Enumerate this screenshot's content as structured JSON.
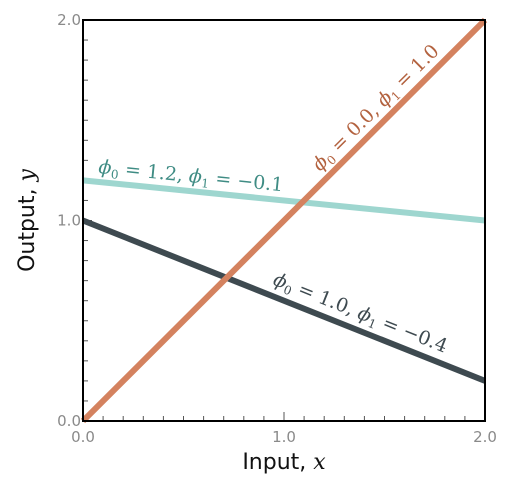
{
  "chart_data": {
    "type": "line",
    "xlabel": "Input, x",
    "ylabel": "Output, y",
    "xlabel_text": "Input, ",
    "xlabel_var": "x",
    "ylabel_text": "Output, ",
    "ylabel_var": "y",
    "xlim": [
      0,
      2
    ],
    "ylim": [
      0,
      2
    ],
    "xticks": [
      0.0,
      1.0,
      2.0
    ],
    "yticks": [
      0.0,
      1.0,
      2.0
    ],
    "xtick_labels": [
      "0.0",
      "1.0",
      "2.0"
    ],
    "ytick_labels": [
      "0.0",
      "1.0",
      "2.0"
    ],
    "grid": false,
    "legend": "none",
    "series": [
      {
        "name": "ϕ0 = 1.2, ϕ1 = −0.1",
        "phi0": "1.2",
        "phi1": "−0.1",
        "x": [
          0,
          2
        ],
        "y": [
          1.2,
          1.0
        ],
        "color": "#9ed6cf"
      },
      {
        "name": "ϕ0 = 1.0, ϕ1 = −0.4",
        "phi0": "1.0",
        "phi1": "−0.4",
        "x": [
          0,
          2
        ],
        "y": [
          1.0,
          0.2
        ],
        "color": "#3e4a50"
      },
      {
        "name": "ϕ0 = 0.0, ϕ1 = 1.0",
        "phi0": "0.0",
        "phi1": "1.0",
        "x": [
          0,
          2
        ],
        "y": [
          0.0,
          2.0
        ],
        "color": "#d4825f"
      }
    ],
    "label_colors": [
      "#3f8c84",
      "#3e4a50",
      "#b3623f"
    ]
  }
}
